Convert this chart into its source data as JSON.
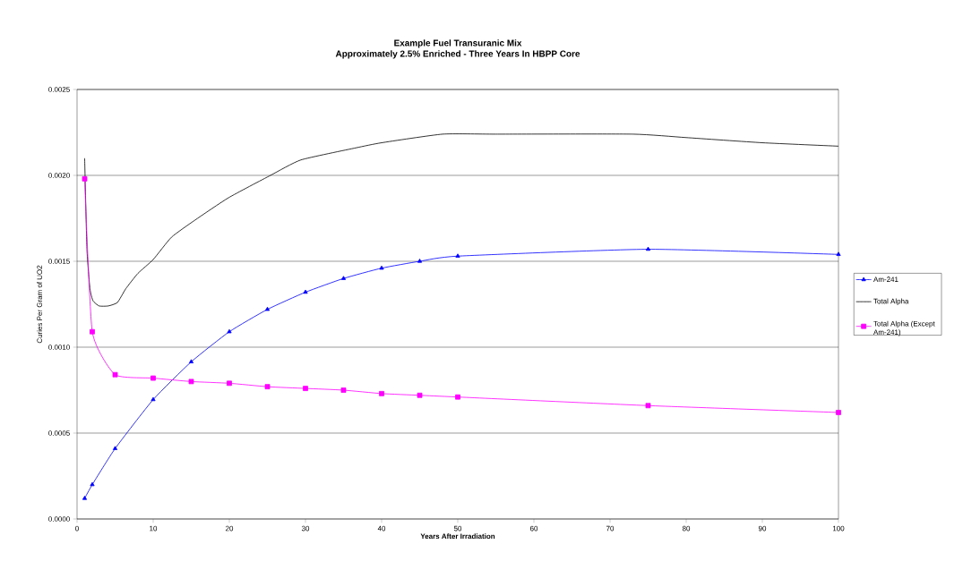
{
  "chart_data": {
    "type": "line",
    "title": "Example Fuel Transuranic Mix",
    "subtitle": "Approximately 2.5% Enriched - Three Years In HBPP Core",
    "xlabel": "Years After Irradiation",
    "ylabel": "Curies Per Gram of UO2",
    "xlim": [
      0,
      100
    ],
    "xticks": [
      0,
      10,
      20,
      30,
      40,
      50,
      60,
      70,
      80,
      90,
      100
    ],
    "ylim": [
      0,
      0.0025
    ],
    "yticks": [
      {
        "value": 0,
        "label": "0.0000"
      },
      {
        "value": 0.0005,
        "label": "0.0005"
      },
      {
        "value": 0.001,
        "label": "0.0010"
      },
      {
        "value": 0.0015,
        "label": "0.0015"
      },
      {
        "value": 0.002,
        "label": "0.0020"
      },
      {
        "value": 0.0025,
        "label": "0.0025"
      }
    ],
    "grid": "y",
    "legend": "right",
    "series": [
      {
        "name": "Am-241",
        "color": "#0000ff",
        "marker": "triangle",
        "x": [
          1,
          2,
          5,
          10,
          15,
          20,
          25,
          30,
          35,
          40,
          45,
          50,
          75,
          100
        ],
        "values": [
          0.00012,
          0.0002,
          0.00041,
          0.000695,
          0.000915,
          0.00109,
          0.00122,
          0.00132,
          0.0014,
          0.00146,
          0.0015,
          0.00153,
          0.00157,
          0.00154
        ]
      },
      {
        "name": "Total Alpha",
        "color": "#000000",
        "marker": "none",
        "x": [
          1,
          1.3,
          1.7,
          2.1,
          2.9,
          4.1,
          5.3,
          6.4,
          8,
          10,
          12.4,
          15.5,
          19.9,
          25.4,
          29.4,
          36.6,
          40,
          48,
          55,
          73,
          80,
          90,
          100
        ],
        "values": [
          0.0021,
          0.00157,
          0.00134,
          0.00127,
          0.00124,
          0.00124,
          0.00126,
          0.00134,
          0.00143,
          0.00151,
          0.00164,
          0.00174,
          0.00187,
          0.002,
          0.00209,
          0.00216,
          0.00219,
          0.00224,
          0.00224,
          0.00224,
          0.00222,
          0.00219,
          0.00217
        ]
      },
      {
        "name": "Total Alpha (Except Am-241)",
        "color": "#ff00ff",
        "marker": "square",
        "x": [
          1,
          2,
          5,
          10,
          15,
          20,
          25,
          30,
          35,
          40,
          45,
          50,
          75,
          100
        ],
        "values": [
          0.00198,
          0.00109,
          0.00084,
          0.00082,
          0.0008,
          0.00079,
          0.00077,
          0.00076,
          0.00075,
          0.00073,
          0.00072,
          0.00071,
          0.00066,
          0.00062
        ]
      }
    ]
  }
}
